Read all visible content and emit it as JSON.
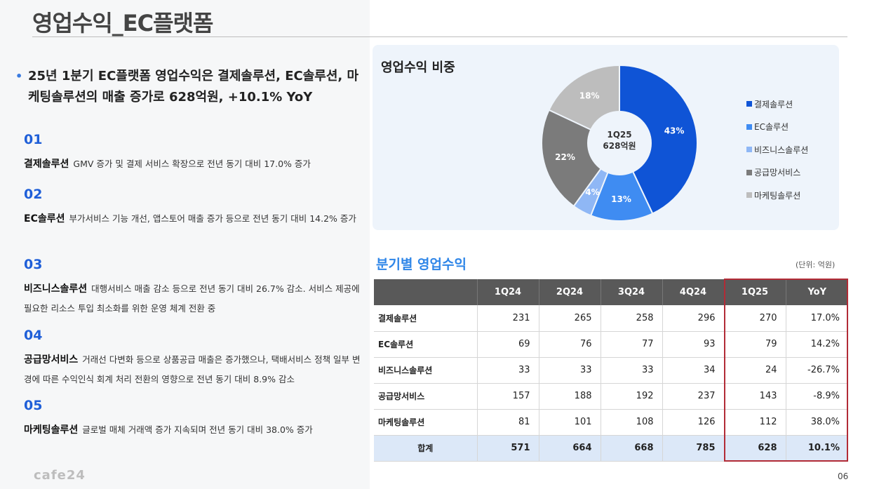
{
  "page": {
    "title": "영업수익_EC플랫폼",
    "headline": "25년  1분기 EC플랫폼 영업수익은 결제솔루션, EC솔루션, 마케팅솔루션의 매출 증가로 628억원, +10.1% YoY",
    "bullet": "•",
    "logo": "cafe24",
    "page_number": "06"
  },
  "items": [
    {
      "num": "01",
      "name": "결제솔루션",
      "desc": "GMV 증가 및 결제 서비스 확장으로 전년 동기 대비 17.0% 증가"
    },
    {
      "num": "02",
      "name": "EC솔루션",
      "desc": "부가서비스 기능 개선, 앱스토어 매출 증가 등으로  전년 동기 대비 14.2% 증가"
    },
    {
      "num": "03",
      "name": "비즈니스솔루션",
      "desc": "대행서비스 매출 감소 등으로 전년 동기 대비 26.7% 감소. 서비스 제공에 필요한 리소스 투입 최소화를 위한 운영 체계 전환 중"
    },
    {
      "num": "04",
      "name": "공급망서비스",
      "desc": "거래선 다변화 등으로 상품공급 매출은 증가했으나, 택배서비스 정책 일부 변경에 따른 수익인식 회계 처리 전환의 영향으로 전년 동기 대비 8.9% 감소"
    },
    {
      "num": "05",
      "name": "마케팅솔루션",
      "desc": "글로벌 매체 거래액 증가 지속되며 전년 동기 대비 38.0% 증가"
    }
  ],
  "pie_chart": {
    "title": "영업수익 비중",
    "center_line1": "1Q25",
    "center_line2": "628억원"
  },
  "table": {
    "title": "분기별 영업수익",
    "unit": "(단위: 억원)",
    "columns": [
      "",
      "1Q24",
      "2Q24",
      "3Q24",
      "4Q24",
      "1Q25",
      "YoY"
    ],
    "rows": [
      {
        "label": "결제솔루션",
        "values": [
          "231",
          "265",
          "258",
          "296",
          "270",
          "17.0%"
        ]
      },
      {
        "label": "EC솔루션",
        "values": [
          "69",
          "76",
          "77",
          "93",
          "79",
          "14.2%"
        ]
      },
      {
        "label": "비즈니스솔루션",
        "values": [
          "33",
          "33",
          "33",
          "34",
          "24",
          "-26.7%"
        ]
      },
      {
        "label": "공급망서비스",
        "values": [
          "157",
          "188",
          "192",
          "237",
          "143",
          "-8.9%"
        ]
      },
      {
        "label": "마케팅솔루션",
        "values": [
          "81",
          "101",
          "108",
          "126",
          "112",
          "38.0%"
        ]
      },
      {
        "label": "합계",
        "values": [
          "571",
          "664",
          "668",
          "785",
          "628",
          "10.1%"
        ]
      }
    ]
  },
  "colors": {
    "accent_blue": "#1f5fd8",
    "highlight_border": "#b22b36"
  },
  "chart_data": {
    "type": "pie",
    "title": "영업수익 비중",
    "categories": [
      "결제솔루션",
      "EC솔루션",
      "비즈니스솔루션",
      "공급망서비스",
      "마케팅솔루션"
    ],
    "values": [
      43,
      13,
      4,
      22,
      18
    ],
    "labels": [
      "43%",
      "13%",
      "4%",
      "22%",
      "18%"
    ],
    "colors": [
      "#0f54d6",
      "#3f8cf2",
      "#8fb7f5",
      "#7b7b7b",
      "#bdbdbd"
    ],
    "legend_position": "right"
  }
}
